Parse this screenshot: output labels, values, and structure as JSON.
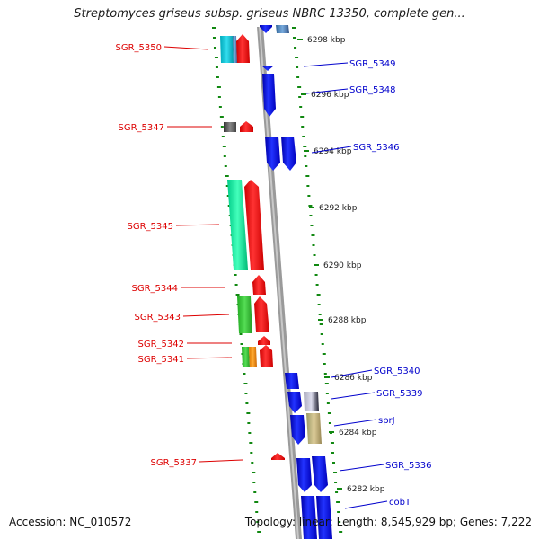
{
  "title": "Streptomyces griseus subsp. griseus NBRC 13350, complete gen...",
  "footer": {
    "accession": "Accession: NC_010572",
    "summary": "Topology: linear; Length: 8,545,929 bp; Genes: 7,222"
  },
  "colors": {
    "label_left": "#dd0000",
    "label_right": "#0000cc",
    "dash": "#118811",
    "backbone": "#999999"
  },
  "ticks": [
    {
      "label": "6298 kbp"
    },
    {
      "label": "6296 kbp"
    },
    {
      "label": "6294 kbp"
    },
    {
      "label": "6292 kbp"
    },
    {
      "label": "6290 kbp"
    },
    {
      "label": "6288 kbp"
    },
    {
      "label": "6286 kbp"
    },
    {
      "label": "6284 kbp"
    },
    {
      "label": "6282 kbp"
    }
  ],
  "left_labels": [
    {
      "text": "SGR_5350"
    },
    {
      "text": "SGR_5347"
    },
    {
      "text": "SGR_5345"
    },
    {
      "text": "SGR_5344"
    },
    {
      "text": "SGR_5343"
    },
    {
      "text": "SGR_5342"
    },
    {
      "text": "SGR_5341"
    },
    {
      "text": "SGR_5337"
    }
  ],
  "right_labels": [
    {
      "text": "SGR_5349"
    },
    {
      "text": "SGR_5348"
    },
    {
      "text": "SGR_5346"
    },
    {
      "text": "SGR_5340"
    },
    {
      "text": "SGR_5339"
    },
    {
      "text": "sprJ"
    },
    {
      "text": "SGR_5336"
    },
    {
      "text": "cobT"
    }
  ]
}
